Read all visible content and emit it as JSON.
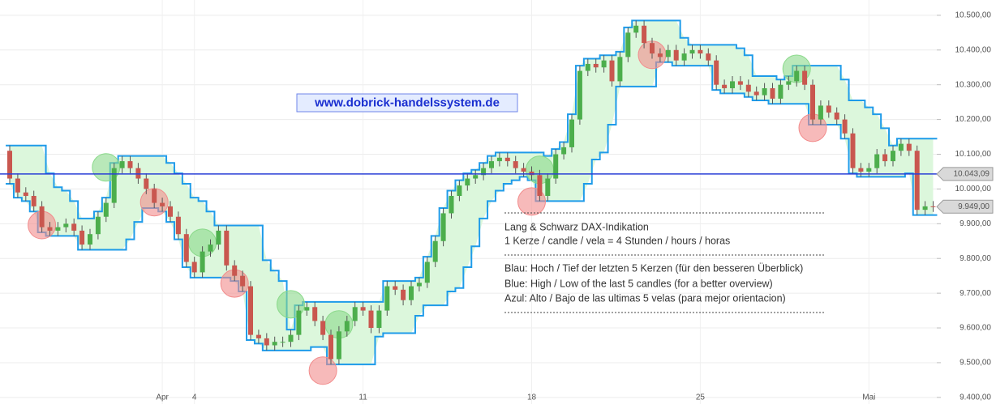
{
  "chart_data": {
    "type": "candlestick",
    "categories": [
      null,
      null,
      null,
      null,
      null,
      null,
      null,
      null,
      null,
      null,
      null,
      null,
      null,
      null,
      null,
      null,
      null,
      null,
      null,
      "Apr",
      null,
      null,
      null,
      "4",
      null,
      null,
      null,
      null,
      null,
      null,
      null,
      null,
      null,
      null,
      null,
      null,
      null,
      null,
      null,
      null,
      null,
      null,
      null,
      null,
      "11",
      null,
      null,
      null,
      null,
      null,
      null,
      null,
      null,
      null,
      null,
      null,
      null,
      null,
      null,
      null,
      null,
      null,
      null,
      null,
      null,
      "18",
      null,
      null,
      null,
      null,
      null,
      null,
      null,
      null,
      null,
      null,
      null,
      null,
      null,
      null,
      null,
      null,
      null,
      null,
      null,
      null,
      "25",
      null,
      null,
      null,
      null,
      null,
      null,
      null,
      null,
      null,
      null,
      null,
      null,
      null,
      null,
      null,
      null,
      null,
      null,
      null,
      null,
      "Mai",
      null,
      null,
      null,
      null,
      null,
      null,
      null,
      null
    ],
    "open": [
      10110,
      10030,
      9990,
      9980,
      9950,
      9890,
      9880,
      9890,
      9900,
      9880,
      9840,
      9870,
      9920,
      9960,
      10060,
      10080,
      10060,
      10030,
      10000,
      9960,
      9950,
      9920,
      9870,
      9790,
      9760,
      9820,
      9840,
      9880,
      9780,
      9750,
      9720,
      9580,
      9570,
      9550,
      9560,
      9560,
      9580,
      9650,
      9660,
      9620,
      9580,
      9510,
      9590,
      9620,
      9660,
      9650,
      9600,
      9650,
      9720,
      9710,
      9680,
      9720,
      9730,
      9790,
      9850,
      9930,
      9980,
      10010,
      10030,
      10040,
      10060,
      10080,
      10090,
      10080,
      10060,
      10050,
      10040,
      9980,
      10030,
      10100,
      10120,
      10200,
      10340,
      10360,
      10350,
      10370,
      10310,
      10380,
      10450,
      10470,
      10420,
      10390,
      10380,
      10400,
      10370,
      10390,
      10400,
      10390,
      10370,
      10300,
      10290,
      10310,
      10300,
      10280,
      10270,
      10290,
      10260,
      10300,
      10310,
      10340,
      10300,
      10200,
      10240,
      10220,
      10200,
      10160,
      10060,
      10050,
      10060,
      10100,
      10080,
      10110,
      10130,
      10110,
      9940,
      9950
    ],
    "high": [
      10125,
      10045,
      10005,
      9995,
      9965,
      9905,
      9905,
      9915,
      9915,
      9895,
      9885,
      9935,
      9975,
      10075,
      10095,
      10095,
      10075,
      10045,
      10015,
      9975,
      9965,
      9935,
      9885,
      9805,
      9835,
      9855,
      9895,
      9895,
      9795,
      9765,
      9735,
      9595,
      9585,
      9575,
      9575,
      9595,
      9665,
      9675,
      9675,
      9635,
      9595,
      9605,
      9635,
      9675,
      9675,
      9665,
      9665,
      9735,
      9735,
      9725,
      9735,
      9745,
      9805,
      9865,
      9945,
      9995,
      10025,
      10045,
      10055,
      10075,
      10095,
      10105,
      10105,
      10095,
      10075,
      10065,
      10055,
      10045,
      10115,
      10135,
      10215,
      10355,
      10375,
      10375,
      10385,
      10385,
      10395,
      10465,
      10485,
      10485,
      10435,
      10405,
      10415,
      10415,
      10405,
      10415,
      10415,
      10405,
      10385,
      10315,
      10325,
      10325,
      10315,
      10295,
      10305,
      10305,
      10315,
      10325,
      10355,
      10355,
      10315,
      10255,
      10255,
      10235,
      10215,
      10175,
      10075,
      10075,
      10115,
      10115,
      10125,
      10145,
      10145,
      10125,
      9965,
      9965
    ],
    "low": [
      10015,
      9975,
      9965,
      9935,
      9875,
      9865,
      9865,
      9875,
      9865,
      9825,
      9825,
      9855,
      9905,
      9945,
      10045,
      10045,
      10015,
      9985,
      9945,
      9935,
      9905,
      9855,
      9775,
      9745,
      9745,
      9805,
      9825,
      9765,
      9735,
      9705,
      9565,
      9555,
      9535,
      9535,
      9545,
      9545,
      9565,
      9635,
      9605,
      9565,
      9495,
      9495,
      9575,
      9605,
      9635,
      9585,
      9585,
      9635,
      9695,
      9665,
      9665,
      9705,
      9715,
      9775,
      9835,
      9915,
      9965,
      9995,
      10015,
      10025,
      10045,
      10065,
      10065,
      10045,
      10035,
      10025,
      9965,
      9965,
      10015,
      10085,
      10105,
      10185,
      10325,
      10335,
      10335,
      10295,
      10295,
      10365,
      10435,
      10405,
      10375,
      10365,
      10365,
      10355,
      10355,
      10375,
      10375,
      10355,
      10285,
      10275,
      10275,
      10285,
      10265,
      10255,
      10255,
      10245,
      10245,
      10285,
      10295,
      10285,
      10185,
      10185,
      10205,
      10185,
      10145,
      10045,
      10035,
      10035,
      10045,
      10065,
      10065,
      10095,
      10095,
      9925,
      9925,
      9934
    ],
    "close": [
      10030,
      9990,
      9980,
      9950,
      9890,
      9880,
      9890,
      9900,
      9880,
      9840,
      9870,
      9920,
      9960,
      10060,
      10080,
      10060,
      10030,
      10000,
      9960,
      9950,
      9920,
      9870,
      9790,
      9760,
      9820,
      9840,
      9880,
      9780,
      9750,
      9720,
      9580,
      9570,
      9550,
      9560,
      9560,
      9580,
      9650,
      9660,
      9620,
      9580,
      9510,
      9590,
      9620,
      9660,
      9650,
      9600,
      9650,
      9720,
      9710,
      9680,
      9720,
      9730,
      9790,
      9850,
      9930,
      9980,
      10010,
      10030,
      10040,
      10060,
      10080,
      10090,
      10080,
      10060,
      10050,
      10040,
      9980,
      10030,
      10100,
      10120,
      10200,
      10340,
      10360,
      10350,
      10370,
      10310,
      10380,
      10450,
      10470,
      10420,
      10390,
      10380,
      10400,
      10370,
      10390,
      10400,
      10390,
      10370,
      10300,
      10290,
      10310,
      10300,
      10280,
      10270,
      10290,
      10260,
      10300,
      10310,
      10340,
      10300,
      10200,
      10240,
      10220,
      10200,
      10160,
      10060,
      10050,
      10060,
      10100,
      10080,
      10110,
      10130,
      10110,
      9940,
      9950,
      9949
    ],
    "up_color": "#4cae4c",
    "down_color": "#c9574f",
    "wick_color": "#555555",
    "channel": {
      "color": "#1e9be9",
      "fill": "#dcf7dc",
      "upper": [
        10125,
        10125,
        10125,
        10125,
        10125,
        10045,
        10005,
        9995,
        9965,
        9915,
        9915,
        9935,
        9975,
        10075,
        10095,
        10095,
        10095,
        10095,
        10095,
        10095,
        10075,
        10045,
        10015,
        9975,
        9965,
        9935,
        9895,
        9895,
        9895,
        9895,
        9895,
        9895,
        9795,
        9765,
        9735,
        9595,
        9665,
        9675,
        9675,
        9675,
        9675,
        9675,
        9675,
        9675,
        9675,
        9675,
        9675,
        9735,
        9735,
        9735,
        9735,
        9745,
        9805,
        9865,
        9945,
        9995,
        10025,
        10045,
        10055,
        10075,
        10095,
        10105,
        10105,
        10105,
        10105,
        10105,
        10105,
        10095,
        10115,
        10135,
        10215,
        10355,
        10375,
        10375,
        10385,
        10385,
        10395,
        10465,
        10485,
        10485,
        10485,
        10485,
        10485,
        10485,
        10435,
        10415,
        10415,
        10415,
        10415,
        10415,
        10415,
        10405,
        10385,
        10325,
        10325,
        10325,
        10315,
        10325,
        10355,
        10355,
        10355,
        10355,
        10355,
        10355,
        10315,
        10255,
        10255,
        10235,
        10215,
        10175,
        10125,
        10145,
        10145,
        10145,
        10145,
        10145
      ],
      "lower": [
        10015,
        9975,
        9965,
        9935,
        9875,
        9865,
        9865,
        9865,
        9865,
        9825,
        9825,
        9825,
        9825,
        9825,
        9825,
        9855,
        9905,
        9945,
        9945,
        9935,
        9905,
        9855,
        9775,
        9745,
        9745,
        9745,
        9745,
        9745,
        9735,
        9705,
        9565,
        9555,
        9535,
        9535,
        9535,
        9535,
        9535,
        9535,
        9545,
        9545,
        9495,
        9495,
        9495,
        9495,
        9495,
        9495,
        9575,
        9585,
        9585,
        9585,
        9585,
        9635,
        9665,
        9665,
        9665,
        9705,
        9715,
        9775,
        9835,
        9915,
        9965,
        9995,
        10015,
        10025,
        10035,
        10025,
        9965,
        9965,
        9965,
        9965,
        9965,
        9965,
        10015,
        10085,
        10105,
        10185,
        10295,
        10295,
        10295,
        10295,
        10295,
        10365,
        10365,
        10355,
        10355,
        10355,
        10355,
        10355,
        10285,
        10275,
        10275,
        10275,
        10265,
        10255,
        10255,
        10245,
        10245,
        10245,
        10245,
        10245,
        10185,
        10185,
        10185,
        10185,
        10145,
        10045,
        10035,
        10035,
        10035,
        10035,
        10035,
        10035,
        10045,
        9925,
        9925,
        9925
      ]
    },
    "signals": [
      {
        "index": 4,
        "value": 9896,
        "color": "#f28c8c"
      },
      {
        "index": 12,
        "value": 10062,
        "color": "#8ad98a"
      },
      {
        "index": 18,
        "value": 9962,
        "color": "#f28c8c"
      },
      {
        "index": 24,
        "value": 9845,
        "color": "#8ad98a"
      },
      {
        "index": 28,
        "value": 9728,
        "color": "#f28c8c"
      },
      {
        "index": 35,
        "value": 9668,
        "color": "#8ad98a"
      },
      {
        "index": 39,
        "value": 9477,
        "color": "#f28c8c"
      },
      {
        "index": 41,
        "value": 9610,
        "color": "#8ad98a"
      },
      {
        "index": 65,
        "value": 9964,
        "color": "#f28c8c"
      },
      {
        "index": 66,
        "value": 10055,
        "color": "#8ad98a"
      },
      {
        "index": 80,
        "value": 10386,
        "color": "#f28c8c"
      },
      {
        "index": 98,
        "value": 10346,
        "color": "#8ad98a"
      },
      {
        "index": 100,
        "value": 10176,
        "color": "#f28c8c"
      }
    ],
    "ref_line": {
      "value": 10043.09,
      "label": "10.043,09",
      "color": "#2a3fd6"
    },
    "last_price": {
      "value": 9949,
      "label": "9.949,00"
    },
    "ylim": [
      9381,
      10544
    ],
    "yticks": [
      {
        "value": 9400,
        "label": "9.400,00"
      },
      {
        "value": 9500,
        "label": "9.500,00"
      },
      {
        "value": 9600,
        "label": "9.600,00"
      },
      {
        "value": 9700,
        "label": "9.700,00"
      },
      {
        "value": 9800,
        "label": "9.800,00"
      },
      {
        "value": 9900,
        "label": "9.900,00"
      },
      {
        "value": 10000,
        "label": "10.000,00"
      },
      {
        "value": 10100,
        "label": "10.100,00"
      },
      {
        "value": 10200,
        "label": "10.200,00"
      },
      {
        "value": 10300,
        "label": "10.300,00"
      },
      {
        "value": 10400,
        "label": "10.400,00"
      },
      {
        "value": 10500,
        "label": "10.500,00"
      }
    ],
    "grid": true,
    "watermark": "www.dobrick-handelssystem.de",
    "notes": [
      "Lang & Schwarz DAX-Indikation",
      "1 Kerze / candle / vela = 4 Stunden / hours / horas",
      "Blau: Hoch / Tief der letzten 5 Kerzen (für den besseren Überblick)",
      "Blue: High / Low of the last 5 candles (for a better overview)",
      "Azul: Alto / Bajo de las ultimas 5 velas (para mejor orientacion)"
    ]
  }
}
